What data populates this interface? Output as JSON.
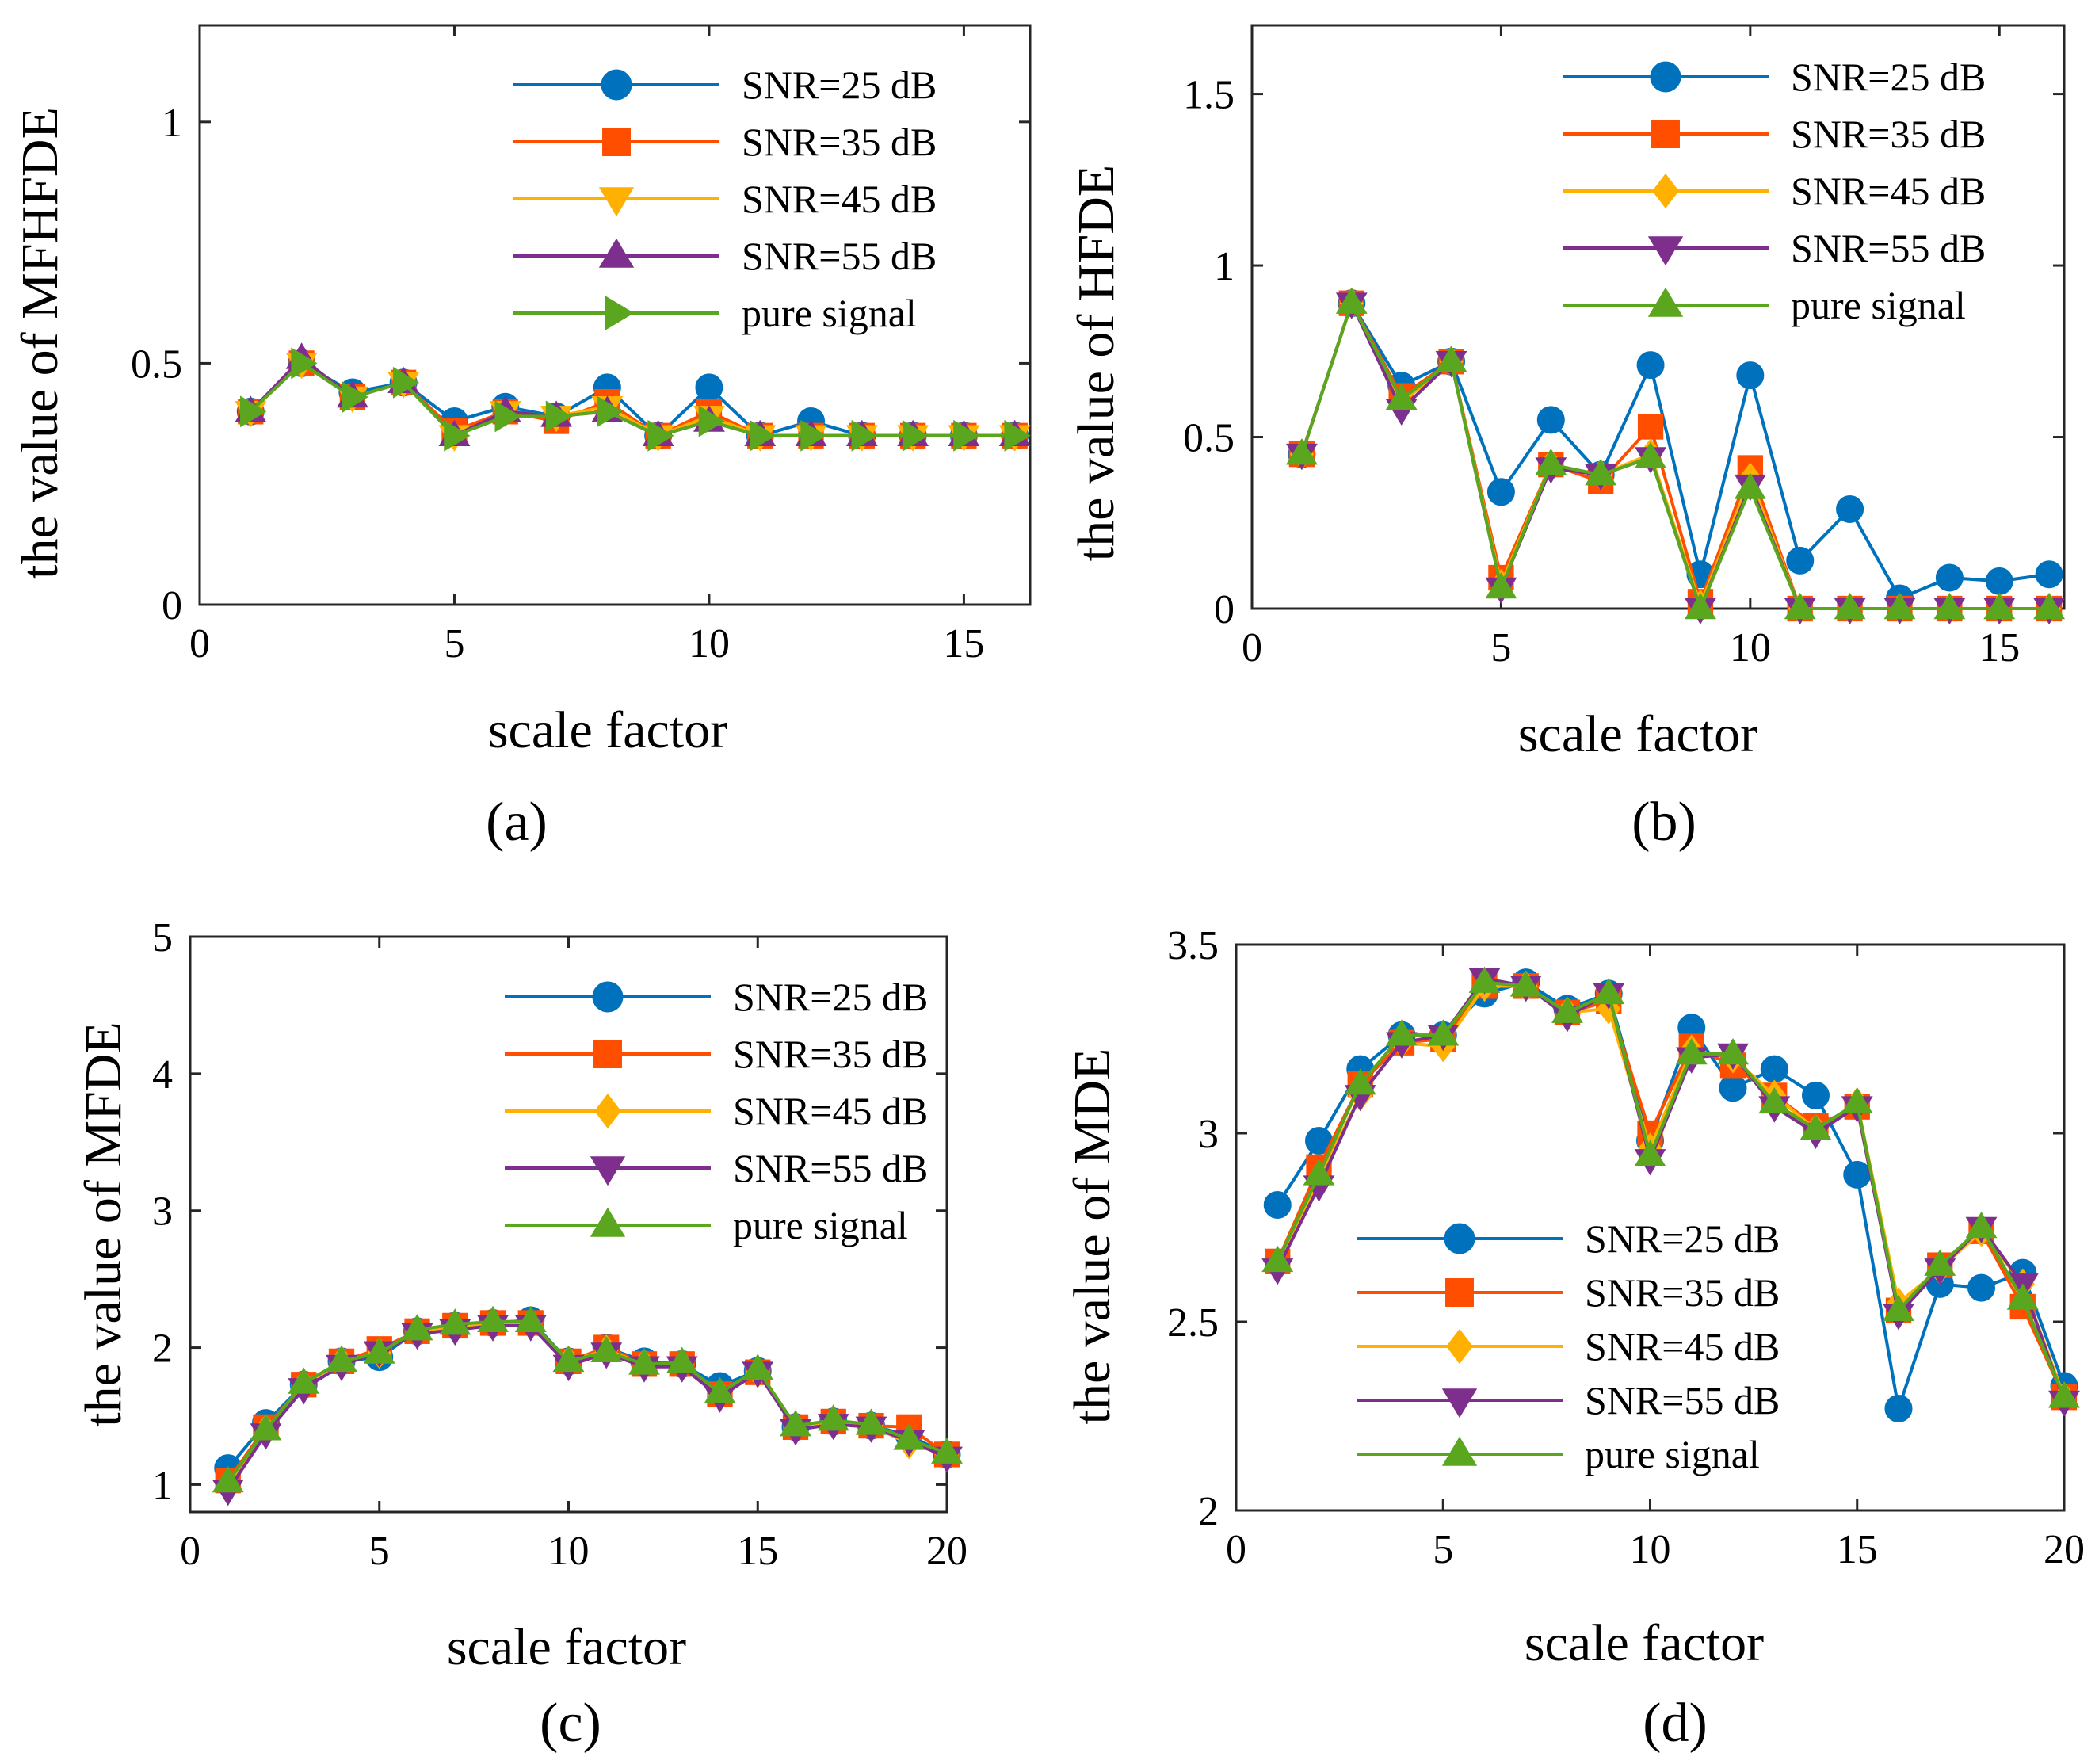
{
  "styles": {
    "SNR=25 dB": {
      "color": "#0072bd",
      "marker": "circle"
    },
    "SNR=35 dB": {
      "color": "#ff4e00",
      "marker": "square"
    },
    "SNR=45 dB": {
      "color": "#ffb000",
      "marker": "diamond"
    },
    "SNR=55 dB": {
      "color": "#7e2f8e",
      "marker": "triangle-down"
    },
    "pure signal": {
      "color": "#5aa61e",
      "marker": "triangle-up"
    }
  },
  "chart_data": [
    {
      "id": "a",
      "type": "line",
      "panel_label": "(a)",
      "xlabel": "scale factor",
      "ylabel": "the value of MFHFDE",
      "xlim": [
        0,
        16.3
      ],
      "ylim": [
        0,
        1.2
      ],
      "xticks": [
        {
          "v": 0,
          "label": "0"
        },
        {
          "v": 5,
          "label": "5"
        },
        {
          "v": 10,
          "label": "10"
        },
        {
          "v": 15,
          "label": "15"
        }
      ],
      "yticks": [
        {
          "v": 0,
          "label": "0"
        },
        {
          "v": 0.5,
          "label": "0.5"
        },
        {
          "v": 1,
          "label": "1"
        }
      ],
      "legend_position": "top-right",
      "x": [
        1,
        2,
        3,
        4,
        5,
        6,
        7,
        8,
        9,
        10,
        11,
        12,
        13,
        14,
        15,
        16
      ],
      "series": [
        {
          "name": "SNR=25 dB",
          "marker": "circle",
          "color": "#0072bd",
          "values": [
            0.4,
            0.5,
            0.44,
            0.46,
            0.38,
            0.41,
            0.39,
            0.45,
            0.35,
            0.45,
            0.35,
            0.38,
            0.35,
            0.35,
            0.35,
            0.35
          ]
        },
        {
          "name": "SNR=35 dB",
          "marker": "square",
          "color": "#ff4e00",
          "values": [
            0.4,
            0.5,
            0.43,
            0.46,
            0.36,
            0.4,
            0.38,
            0.42,
            0.35,
            0.4,
            0.35,
            0.35,
            0.35,
            0.35,
            0.35,
            0.35
          ]
        },
        {
          "name": "SNR=45 dB",
          "marker": "triangle-down",
          "color": "#ffb000",
          "values": [
            0.4,
            0.5,
            0.43,
            0.46,
            0.35,
            0.4,
            0.39,
            0.41,
            0.35,
            0.39,
            0.35,
            0.35,
            0.35,
            0.35,
            0.35,
            0.35
          ]
        },
        {
          "name": "SNR=55 dB",
          "marker": "triangle-up",
          "color": "#7e2f8e",
          "values": [
            0.4,
            0.51,
            0.43,
            0.46,
            0.35,
            0.4,
            0.39,
            0.4,
            0.35,
            0.38,
            0.35,
            0.35,
            0.35,
            0.35,
            0.35,
            0.35
          ]
        },
        {
          "name": "pure signal",
          "marker": "triangle-right",
          "color": "#5aa61e",
          "values": [
            0.4,
            0.5,
            0.43,
            0.46,
            0.35,
            0.39,
            0.39,
            0.4,
            0.35,
            0.38,
            0.35,
            0.35,
            0.35,
            0.35,
            0.35,
            0.35
          ]
        }
      ]
    },
    {
      "id": "b",
      "type": "line",
      "panel_label": "(b)",
      "xlabel": "scale factor",
      "ylabel": "the value of HFDE",
      "xlim": [
        0,
        16.3
      ],
      "ylim": [
        0,
        1.7
      ],
      "xticks": [
        {
          "v": 0,
          "label": "0"
        },
        {
          "v": 5,
          "label": "5"
        },
        {
          "v": 10,
          "label": "10"
        },
        {
          "v": 15,
          "label": "15"
        }
      ],
      "yticks": [
        {
          "v": 0,
          "label": "0"
        },
        {
          "v": 0.5,
          "label": "0.5"
        },
        {
          "v": 1,
          "label": "1"
        },
        {
          "v": 1.5,
          "label": "1.5"
        }
      ],
      "legend_position": "top-right",
      "x": [
        1,
        2,
        3,
        4,
        5,
        6,
        7,
        8,
        9,
        10,
        11,
        12,
        13,
        14,
        15,
        16
      ],
      "series": [
        {
          "name": "SNR=25 dB",
          "marker": "circle",
          "color": "#0072bd",
          "values": [
            0.45,
            0.89,
            0.65,
            0.72,
            0.34,
            0.55,
            0.39,
            0.71,
            0.1,
            0.68,
            0.14,
            0.29,
            0.03,
            0.09,
            0.08,
            0.1
          ]
        },
        {
          "name": "SNR=35 dB",
          "marker": "square",
          "color": "#ff4e00",
          "values": [
            0.45,
            0.89,
            0.62,
            0.72,
            0.09,
            0.42,
            0.37,
            0.53,
            0.02,
            0.41,
            0.0,
            0.0,
            0.0,
            0.0,
            0.0,
            0.0
          ]
        },
        {
          "name": "SNR=45 dB",
          "marker": "diamond",
          "color": "#ffb000",
          "values": [
            0.45,
            0.89,
            0.6,
            0.72,
            0.07,
            0.42,
            0.39,
            0.45,
            0.01,
            0.38,
            0.0,
            0.0,
            0.0,
            0.0,
            0.0,
            0.0
          ]
        },
        {
          "name": "SNR=55 dB",
          "marker": "triangle-down",
          "color": "#7e2f8e",
          "values": [
            0.45,
            0.89,
            0.58,
            0.72,
            0.06,
            0.41,
            0.39,
            0.44,
            0.0,
            0.36,
            0.0,
            0.0,
            0.0,
            0.0,
            0.0,
            0.0
          ]
        },
        {
          "name": "pure signal",
          "marker": "triangle-up",
          "color": "#5aa61e",
          "values": [
            0.45,
            0.89,
            0.61,
            0.72,
            0.06,
            0.42,
            0.39,
            0.44,
            0.0,
            0.35,
            0.0,
            0.0,
            0.0,
            0.0,
            0.0,
            0.0
          ]
        }
      ]
    },
    {
      "id": "c",
      "type": "line",
      "panel_label": "(c)",
      "xlabel": "scale factor",
      "ylabel": "the value of MFDE",
      "xlim": [
        0,
        20
      ],
      "ylim": [
        0.8,
        5
      ],
      "xticks": [
        {
          "v": 0,
          "label": "0"
        },
        {
          "v": 5,
          "label": "5"
        },
        {
          "v": 10,
          "label": "10"
        },
        {
          "v": 15,
          "label": "15"
        },
        {
          "v": 20,
          "label": "20"
        }
      ],
      "yticks": [
        {
          "v": 1,
          "label": "1"
        },
        {
          "v": 2,
          "label": "2"
        },
        {
          "v": 3,
          "label": "3"
        },
        {
          "v": 4,
          "label": "4"
        },
        {
          "v": 5,
          "label": "5"
        }
      ],
      "legend_position": "top-right",
      "x": [
        1,
        2,
        3,
        4,
        5,
        6,
        7,
        8,
        9,
        10,
        11,
        12,
        13,
        14,
        15,
        16,
        17,
        18,
        19,
        20
      ],
      "series": [
        {
          "name": "SNR=25 dB",
          "marker": "circle",
          "color": "#0072bd",
          "values": [
            1.12,
            1.45,
            1.73,
            1.9,
            1.93,
            2.12,
            2.16,
            2.18,
            2.2,
            1.9,
            2.0,
            1.9,
            1.88,
            1.72,
            1.83,
            1.42,
            1.46,
            1.43,
            1.36,
            1.22
          ]
        },
        {
          "name": "SNR=35 dB",
          "marker": "square",
          "color": "#ff4e00",
          "values": [
            1.03,
            1.42,
            1.73,
            1.9,
            1.99,
            2.12,
            2.16,
            2.18,
            2.18,
            1.9,
            2.0,
            1.88,
            1.88,
            1.66,
            1.82,
            1.42,
            1.46,
            1.43,
            1.42,
            1.22
          ]
        },
        {
          "name": "SNR=45 dB",
          "marker": "diamond",
          "color": "#ffb000",
          "values": [
            1.0,
            1.4,
            1.73,
            1.9,
            1.96,
            2.12,
            2.15,
            2.18,
            2.18,
            1.9,
            1.98,
            1.88,
            1.88,
            1.66,
            1.82,
            1.42,
            1.46,
            1.43,
            1.3,
            1.22
          ]
        },
        {
          "name": "SNR=55 dB",
          "marker": "triangle-down",
          "color": "#7e2f8e",
          "values": [
            0.96,
            1.37,
            1.7,
            1.87,
            1.97,
            2.1,
            2.13,
            2.16,
            2.16,
            1.87,
            1.96,
            1.86,
            1.86,
            1.64,
            1.82,
            1.4,
            1.44,
            1.42,
            1.32,
            1.2
          ]
        },
        {
          "name": "pure signal",
          "marker": "triangle-up",
          "color": "#5aa61e",
          "values": [
            1.02,
            1.4,
            1.74,
            1.9,
            1.96,
            2.13,
            2.17,
            2.19,
            2.19,
            1.9,
            1.97,
            1.88,
            1.89,
            1.67,
            1.84,
            1.43,
            1.47,
            1.44,
            1.33,
            1.23
          ]
        }
      ]
    },
    {
      "id": "d",
      "type": "line",
      "panel_label": "(d)",
      "xlabel": "scale factor",
      "ylabel": "the value of MDE",
      "xlim": [
        0,
        20
      ],
      "ylim": [
        2,
        3.5
      ],
      "xticks": [
        {
          "v": 0,
          "label": "0"
        },
        {
          "v": 5,
          "label": "5"
        },
        {
          "v": 10,
          "label": "10"
        },
        {
          "v": 15,
          "label": "15"
        },
        {
          "v": 20,
          "label": "20"
        }
      ],
      "yticks": [
        {
          "v": 2,
          "label": "2"
        },
        {
          "v": 2.5,
          "label": "2.5"
        },
        {
          "v": 3,
          "label": "3"
        },
        {
          "v": 3.5,
          "label": "3.5"
        }
      ],
      "legend_position": "bottom-left",
      "x": [
        1,
        2,
        3,
        4,
        5,
        6,
        7,
        8,
        9,
        10,
        11,
        12,
        13,
        14,
        15,
        16,
        17,
        18,
        19,
        20
      ],
      "series": [
        {
          "name": "SNR=25 dB",
          "marker": "circle",
          "color": "#0072bd",
          "values": [
            2.81,
            2.98,
            3.17,
            3.26,
            3.26,
            3.37,
            3.4,
            3.33,
            3.37,
            2.98,
            3.28,
            3.12,
            3.17,
            3.1,
            2.89,
            2.27,
            2.6,
            2.59,
            2.63,
            2.33
          ]
        },
        {
          "name": "SNR=35 dB",
          "marker": "square",
          "color": "#ff4e00",
          "values": [
            2.66,
            2.91,
            3.13,
            3.24,
            3.25,
            3.39,
            3.39,
            3.32,
            3.35,
            3.0,
            3.23,
            3.18,
            3.1,
            3.02,
            3.07,
            2.53,
            2.65,
            2.74,
            2.54,
            2.3
          ]
        },
        {
          "name": "SNR=45 dB",
          "marker": "diamond",
          "color": "#ffb000",
          "values": [
            2.65,
            2.88,
            3.1,
            3.24,
            3.23,
            3.39,
            3.39,
            3.32,
            3.33,
            2.96,
            3.22,
            3.2,
            3.1,
            3.01,
            3.08,
            2.55,
            2.64,
            2.74,
            2.6,
            2.3
          ]
        },
        {
          "name": "SNR=55 dB",
          "marker": "triangle-down",
          "color": "#7e2f8e",
          "values": [
            2.64,
            2.86,
            3.1,
            3.24,
            3.26,
            3.41,
            3.39,
            3.31,
            3.37,
            2.93,
            3.2,
            3.21,
            3.07,
            3.0,
            3.07,
            2.52,
            2.64,
            2.75,
            2.6,
            2.29
          ]
        },
        {
          "name": "pure signal",
          "marker": "triangle-up",
          "color": "#5aa61e",
          "values": [
            2.66,
            2.89,
            3.13,
            3.26,
            3.26,
            3.4,
            3.39,
            3.32,
            3.37,
            2.94,
            3.21,
            3.21,
            3.08,
            3.01,
            3.08,
            2.53,
            2.65,
            2.75,
            2.56,
            2.3
          ]
        }
      ]
    }
  ]
}
